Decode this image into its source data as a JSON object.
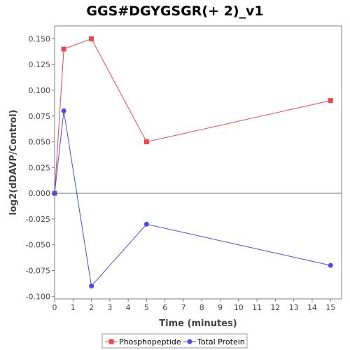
{
  "chart_data": {
    "type": "line",
    "title": "GGS#DGYGSGR(+ 2)_v1",
    "xlabel": "Time (minutes)",
    "ylabel": "log2(dDAVP/Control)",
    "xlim": [
      0,
      15.6
    ],
    "ylim": [
      -0.1025,
      0.1625
    ],
    "xticks": [
      0,
      1,
      2,
      3,
      4,
      5,
      6,
      7,
      8,
      9,
      10,
      11,
      12,
      13,
      14,
      15
    ],
    "yticks": [
      -0.1,
      -0.075,
      -0.05,
      -0.025,
      0.0,
      0.025,
      0.05,
      0.075,
      0.1,
      0.125,
      0.15
    ],
    "ytick_labels": [
      "-0.100",
      "-0.075",
      "-0.050",
      "-0.025",
      "0.000",
      "0.025",
      "0.050",
      "0.075",
      "0.100",
      "0.125",
      "0.150"
    ],
    "zero_line": true,
    "grid": false,
    "legend_position": "bottom",
    "series": [
      {
        "name": "Phosphopeptide",
        "color": "#e8494f",
        "marker": "square",
        "x": [
          0,
          0.5,
          2,
          5,
          15
        ],
        "y": [
          0.0,
          0.14,
          0.15,
          0.05,
          0.09
        ]
      },
      {
        "name": "Total Protein",
        "color": "#4b4be8",
        "marker": "circle",
        "x": [
          0,
          0.5,
          2,
          5,
          15
        ],
        "y": [
          0.0,
          0.08,
          -0.09,
          -0.03,
          -0.07
        ]
      }
    ]
  }
}
